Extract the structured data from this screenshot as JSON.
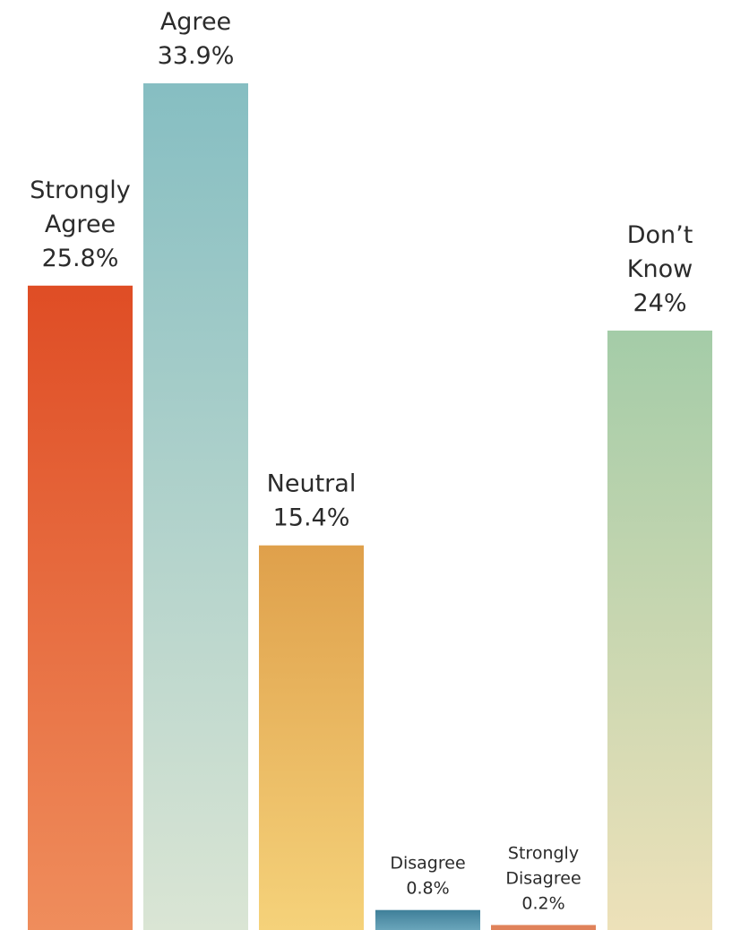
{
  "chart_data": {
    "type": "bar",
    "title": "",
    "xlabel": "",
    "ylabel": "",
    "ylim": [
      0,
      35
    ],
    "grid": false,
    "legend": "none",
    "categories": [
      [
        "Strongly",
        "Agree"
      ],
      [
        "Agree"
      ],
      [
        "Neutral"
      ],
      [
        "Disagree"
      ],
      [
        "Strongly",
        "Disagree"
      ],
      [
        "Don’t",
        "Know"
      ]
    ],
    "values": [
      25.8,
      33.9,
      15.4,
      0.8,
      0.2,
      24
    ],
    "value_labels": [
      "25.8%",
      "33.9%",
      "15.4%",
      "0.8%",
      "0.2%",
      "24%"
    ],
    "colors": [
      {
        "top": "#df4d25",
        "bottom": "#ef8d5c"
      },
      {
        "top": "#86bec2",
        "bottom": "#dae5d4"
      },
      {
        "top": "#dfa04b",
        "bottom": "#f5d27a"
      },
      {
        "top": "#3f7f99",
        "bottom": "#6aa5ba"
      },
      {
        "top": "#e0825a",
        "bottom": "#e0825a"
      },
      {
        "top": "#a4cca8",
        "bottom": "#ede1b9"
      }
    ]
  }
}
